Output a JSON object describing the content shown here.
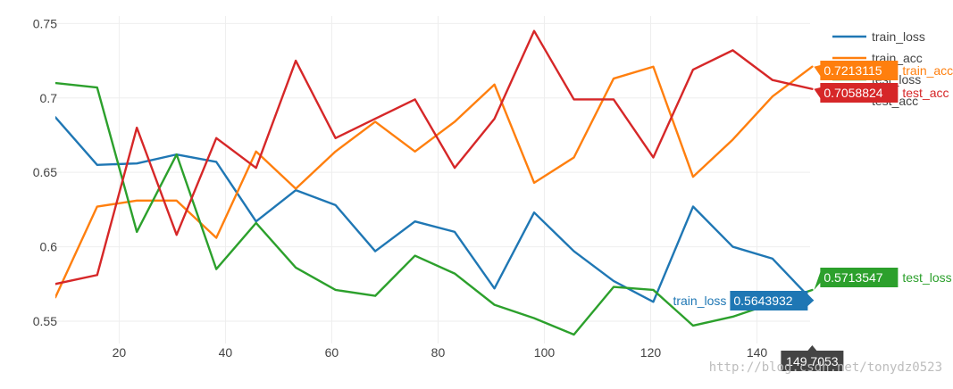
{
  "chart_data": {
    "type": "line",
    "title": "",
    "xlabel": "",
    "ylabel": "",
    "xlim": [
      8,
      150
    ],
    "ylim": [
      0.535,
      0.755
    ],
    "x_ticks": [
      20,
      40,
      60,
      80,
      100,
      120,
      140
    ],
    "y_ticks": [
      0.55,
      0.6,
      0.65,
      0.7,
      0.75
    ],
    "y_tick_labels": [
      "0.55",
      "0.6",
      "0.65",
      "0.7",
      "0.75"
    ],
    "grid": true,
    "legend_position": "top-right",
    "x": [
      8,
      15.86,
      23.33,
      30.81,
      38.28,
      45.76,
      53.23,
      60.71,
      68.18,
      75.66,
      83.13,
      90.61,
      98.08,
      105.56,
      113.03,
      120.5,
      127.98,
      135.45,
      142.93,
      150.4
    ],
    "series": [
      {
        "name": "train_loss",
        "color": "#1f77b4",
        "values": [
          0.687,
          0.655,
          0.656,
          0.662,
          0.657,
          0.617,
          0.638,
          0.628,
          0.597,
          0.617,
          0.61,
          0.572,
          0.623,
          0.597,
          0.577,
          0.563,
          0.627,
          0.6,
          0.592,
          0.564
        ]
      },
      {
        "name": "train_acc",
        "color": "#ff7f0e",
        "values": [
          0.566,
          0.627,
          0.631,
          0.631,
          0.606,
          0.664,
          0.639,
          0.664,
          0.684,
          0.664,
          0.684,
          0.709,
          0.643,
          0.66,
          0.713,
          0.721,
          0.647,
          0.672,
          0.701,
          0.721
        ]
      },
      {
        "name": "test_loss",
        "color": "#2ca02c",
        "values": [
          0.71,
          0.707,
          0.61,
          0.662,
          0.585,
          0.616,
          0.586,
          0.571,
          0.567,
          0.594,
          0.582,
          0.561,
          0.552,
          0.541,
          0.573,
          0.571,
          0.547,
          0.553,
          0.562,
          0.571
        ]
      },
      {
        "name": "test_acc",
        "color": "#d62728",
        "values": [
          0.575,
          0.581,
          0.68,
          0.608,
          0.673,
          0.653,
          0.725,
          0.673,
          0.686,
          0.699,
          0.653,
          0.686,
          0.745,
          0.699,
          0.699,
          0.66,
          0.719,
          0.732,
          0.712,
          0.706
        ]
      }
    ],
    "hover": {
      "x_label": "149.7053",
      "items": [
        {
          "series": "train_acc",
          "value": "0.7213115",
          "name": "train_acc",
          "color": "#ff7f0e",
          "side": "right"
        },
        {
          "series": "test_acc",
          "value": "0.7058824",
          "name": "test_acc",
          "color": "#d62728",
          "side": "right"
        },
        {
          "series": "test_loss",
          "value": "0.5713547",
          "name": "test_loss",
          "color": "#2ca02c",
          "side": "right"
        },
        {
          "series": "train_loss",
          "value": "0.5643932",
          "name": "train_loss",
          "color": "#1f77b4",
          "side": "left"
        }
      ]
    }
  },
  "watermark": "http://blog.csdn.net/tonydz0523"
}
